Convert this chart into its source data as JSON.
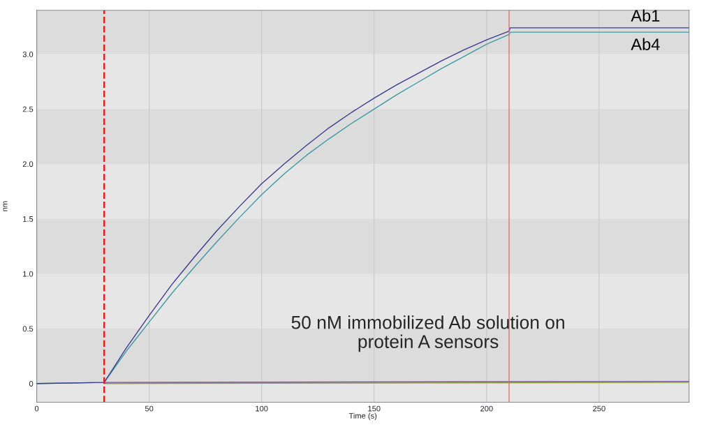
{
  "chart_data": {
    "type": "line",
    "xlabel": "Time (s)",
    "ylabel": "nm",
    "xlim": [
      0,
      290
    ],
    "ylim": [
      -0.17,
      3.4
    ],
    "xticks": [
      0,
      50,
      100,
      150,
      200,
      250
    ],
    "yticks": [
      0,
      0.5,
      {
        "value": 1.0,
        "label": "1.0"
      },
      1.5,
      {
        "value": 2.0,
        "label": "2.0"
      },
      2.5,
      {
        "value": 3.0,
        "label": "3.0"
      }
    ],
    "grid": "x",
    "series": [
      {
        "name": "Ab1",
        "color": "#3b3b8f",
        "x": [
          0,
          30,
          40,
          50,
          60,
          70,
          80,
          90,
          100,
          110,
          120,
          130,
          140,
          150,
          160,
          170,
          180,
          190,
          200,
          210,
          210.5,
          290
        ],
        "values": [
          0.0,
          0.01,
          0.33,
          0.62,
          0.9,
          1.15,
          1.39,
          1.61,
          1.82,
          2.0,
          2.17,
          2.33,
          2.47,
          2.6,
          2.72,
          2.83,
          2.94,
          3.04,
          3.13,
          3.21,
          3.24,
          3.24
        ]
      },
      {
        "name": "Ab4",
        "color": "#3a9aa0",
        "x": [
          0,
          30,
          40,
          50,
          60,
          70,
          80,
          90,
          100,
          110,
          120,
          130,
          140,
          150,
          160,
          170,
          180,
          190,
          200,
          210,
          210.5,
          290
        ],
        "values": [
          0.0,
          0.01,
          0.3,
          0.56,
          0.82,
          1.06,
          1.29,
          1.51,
          1.72,
          1.91,
          2.08,
          2.23,
          2.37,
          2.5,
          2.63,
          2.75,
          2.87,
          2.98,
          3.09,
          3.18,
          3.2,
          3.2
        ]
      },
      {
        "color": "#7a4fa0",
        "x": [
          30,
          290
        ],
        "values": [
          0.01,
          0.02
        ]
      },
      {
        "color": "#8aa030",
        "x": [
          30,
          290
        ],
        "values": [
          0.0,
          0.01
        ]
      }
    ],
    "ref_lines": [
      {
        "axis": "x",
        "value": 30,
        "color": "#e0201c",
        "line_style": "dashed"
      },
      {
        "axis": "x",
        "value": 210,
        "color": "#e86070",
        "line_style": "solid"
      }
    ],
    "annotations": [
      "50 nM immobilized Ab solution on\nprotein A sensors"
    ]
  }
}
